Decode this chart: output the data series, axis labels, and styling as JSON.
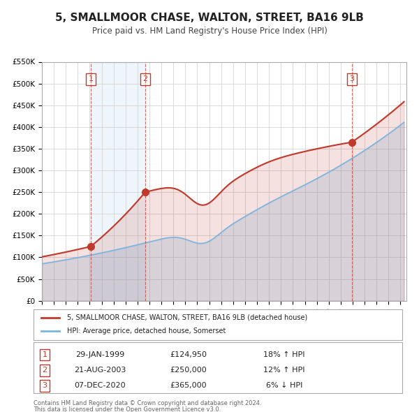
{
  "title": "5, SMALLMOOR CHASE, WALTON, STREET, BA16 9LB",
  "subtitle": "Price paid vs. HM Land Registry's House Price Index (HPI)",
  "legend_label_red": "5, SMALLMOOR CHASE, WALTON, STREET, BA16 9LB (detached house)",
  "legend_label_blue": "HPI: Average price, detached house, Somerset",
  "footer_line1": "Contains HM Land Registry data © Crown copyright and database right 2024.",
  "footer_line2": "This data is licensed under the Open Government Licence v3.0.",
  "transactions": [
    {
      "num": 1,
      "date": "29-JAN-1999",
      "price": "£124,950",
      "hpi": "18% ↑ HPI",
      "year": 1999.08
    },
    {
      "num": 2,
      "date": "21-AUG-2003",
      "price": "£250,000",
      "hpi": "12% ↑ HPI",
      "year": 2003.64
    },
    {
      "num": 3,
      "date": "07-DEC-2020",
      "price": "£365,000",
      "hpi": "6% ↓ HPI",
      "year": 2020.93
    }
  ],
  "sale_values": [
    124950,
    250000,
    365000
  ],
  "sale_years": [
    1999.08,
    2003.64,
    2020.93
  ],
  "ylim": [
    0,
    550000
  ],
  "xlim_start": 1995.0,
  "xlim_end": 2025.5,
  "hpi_color": "#7ab4e0",
  "red_color": "#c0392b",
  "background_color": "#f0f4ff",
  "plot_bg": "#ffffff",
  "grid_color": "#cccccc"
}
